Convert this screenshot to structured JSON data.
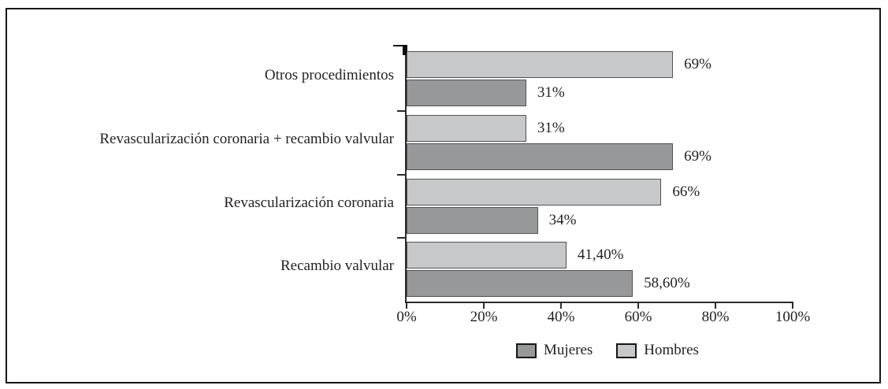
{
  "chart_data": {
    "type": "bar",
    "orientation": "horizontal",
    "title": "",
    "xlabel": "",
    "ylabel": "",
    "categories": [
      "Otros procedimientos",
      "Revascularización coronaria + recambio valvular",
      "Revascularización coronaria",
      "Recambio valvular"
    ],
    "series": [
      {
        "name": "Hombres",
        "color": "#c7c8ca",
        "border_color": "#525254",
        "values": [
          69,
          31,
          66,
          41.4
        ],
        "value_labels": [
          "69%",
          "31%",
          "66%",
          "41,40%"
        ]
      },
      {
        "name": "Mujeres",
        "color": "#97989a",
        "border_color": "#515153",
        "values": [
          31,
          69,
          34,
          58.6
        ],
        "value_labels": [
          "31%",
          "69%",
          "34%",
          "58,60%"
        ]
      }
    ],
    "series_draw_order_note": "Hombres (light) bar on top of Mujeres (dark) bar inside each category group",
    "xlim": [
      0,
      100
    ],
    "x_tick_labels": [
      "0%",
      "20%",
      "40%",
      "60%",
      "80%",
      "100%"
    ],
    "grid": false,
    "legend": {
      "position": "bottom",
      "entries": [
        {
          "label": "Mujeres",
          "color": "#97989a"
        },
        {
          "label": "Hombres",
          "color": "#c7c8ca"
        }
      ]
    },
    "axis_color": "#2b2b2d",
    "text_color": "#231f20"
  }
}
